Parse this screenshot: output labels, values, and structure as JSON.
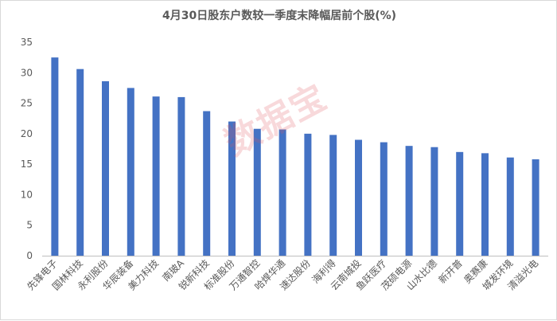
{
  "chart_data": {
    "type": "bar",
    "title": "4月30日股东户数较一季度末降幅居前个股(%)",
    "categories": [
      "先锋电子",
      "国林科技",
      "永利股份",
      "华辰装备",
      "美力科技",
      "南玻A",
      "锐新科技",
      "标准股份",
      "万通智控",
      "哈焊华通",
      "速达股份",
      "海利得",
      "云南城投",
      "鱼跃医疗",
      "茂硕电源",
      "山水比德",
      "新开普",
      "奥赛康",
      "城发环境",
      "清溢光电"
    ],
    "values": [
      32.5,
      30.6,
      28.6,
      27.5,
      26.1,
      26.0,
      23.7,
      22.0,
      20.8,
      20.7,
      20.0,
      19.8,
      19.0,
      18.6,
      18.0,
      17.8,
      17.0,
      16.8,
      16.1,
      15.8
    ],
    "ylim": [
      0,
      35
    ],
    "yticks": [
      0,
      5,
      10,
      15,
      20,
      25,
      30,
      35
    ],
    "grid": false,
    "bar_color": "#4472c4",
    "axis_color": "#bfbfbf",
    "xlabel": "",
    "ylabel": ""
  },
  "watermark": {
    "text": "数据宝",
    "color": "#e1505a"
  }
}
